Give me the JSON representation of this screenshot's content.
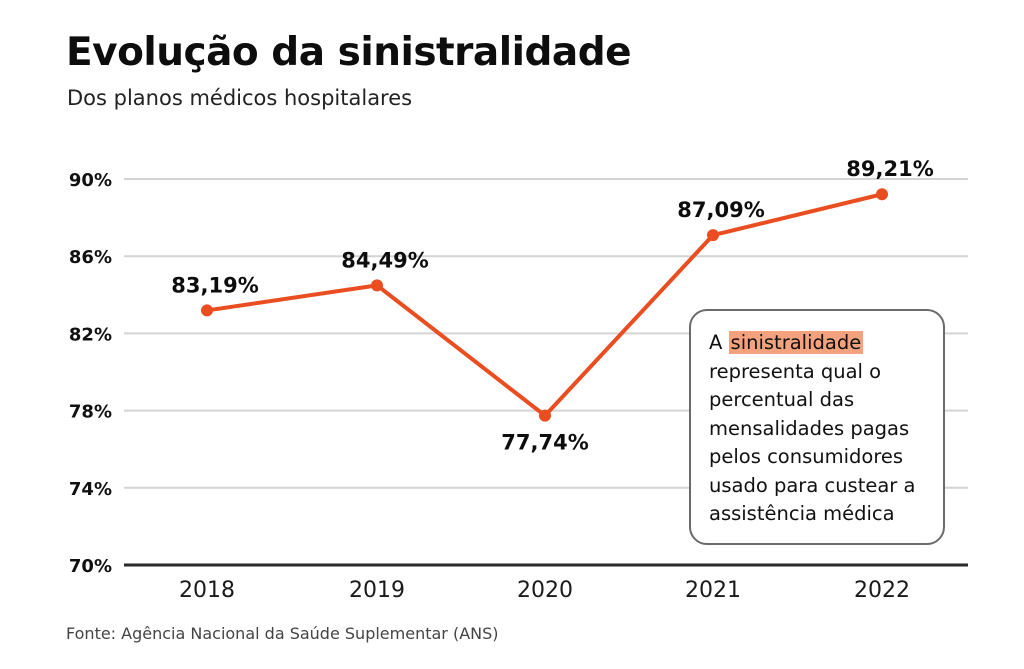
{
  "header": {
    "title": "Evolução da sinistralidade",
    "subtitle": "Dos planos médicos hospitalares"
  },
  "note": {
    "prefix": "A",
    "highlight": "sinistralidade",
    "rest": "representa qual o percentual das mensalidades pagas pelos consumidores usado para custear a assistência médica",
    "highlight_color": "#f4a27d"
  },
  "source": "Fonte: Agência Nacional da Saúde Suplementar (ANS)",
  "colors": {
    "line": "#ea4e20",
    "grid": "#d4d4d4",
    "axis": "#2a2a2a"
  },
  "chart_data": {
    "type": "line",
    "title": "Evolução da sinistralidade",
    "subtitle": "Dos planos médicos hospitalares",
    "xlabel": "",
    "ylabel": "",
    "categories": [
      "2018",
      "2019",
      "2020",
      "2021",
      "2022"
    ],
    "series": [
      {
        "name": "Sinistralidade",
        "values": [
          83.19,
          84.49,
          77.74,
          87.09,
          89.21
        ],
        "labels": [
          "83,19%",
          "84,49%",
          "77,74%",
          "87,09%",
          "89,21%"
        ]
      }
    ],
    "ylim": [
      70,
      90
    ],
    "yticks": [
      70,
      74,
      78,
      82,
      86,
      90
    ],
    "ytick_labels": [
      "70%",
      "74%",
      "78%",
      "82%",
      "86%",
      "90%"
    ],
    "grid": true,
    "legend": "none"
  }
}
